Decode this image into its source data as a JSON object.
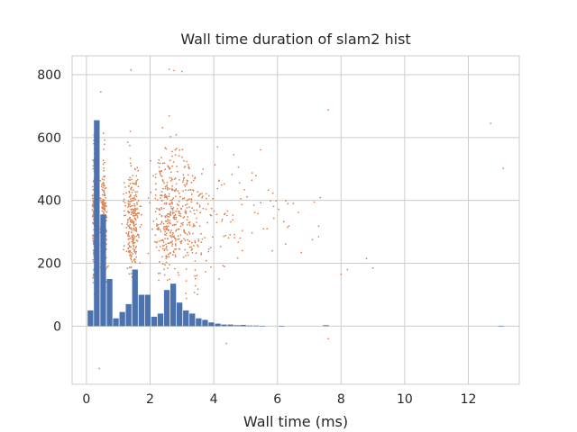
{
  "chart_data": {
    "type": "bar",
    "title": "Wall time duration of slam2 hist",
    "xlabel": "Wall time (ms)",
    "ylabel": "",
    "xlim": [
      -0.45,
      13.6
    ],
    "ylim": [
      -185,
      860
    ],
    "xticks": [
      0,
      2,
      4,
      6,
      8,
      10,
      12
    ],
    "yticks": [
      0,
      200,
      400,
      600,
      800
    ],
    "grid": true,
    "colors": {
      "bars": "#4c72b0",
      "scatter": "#dd8452",
      "grid": "#cccccc",
      "frame": "#cccccc"
    },
    "series": [
      {
        "type": "bar",
        "bins": [
          {
            "x": 0.125,
            "w": 0.2,
            "h": 50
          },
          {
            "x": 0.325,
            "w": 0.2,
            "h": 655
          },
          {
            "x": 0.525,
            "w": 0.2,
            "h": 355
          },
          {
            "x": 0.725,
            "w": 0.2,
            "h": 150
          },
          {
            "x": 0.925,
            "w": 0.2,
            "h": 25
          },
          {
            "x": 1.125,
            "w": 0.2,
            "h": 45
          },
          {
            "x": 1.325,
            "w": 0.2,
            "h": 70
          },
          {
            "x": 1.525,
            "w": 0.2,
            "h": 180
          },
          {
            "x": 1.725,
            "w": 0.2,
            "h": 100
          },
          {
            "x": 1.925,
            "w": 0.2,
            "h": 100
          },
          {
            "x": 2.125,
            "w": 0.2,
            "h": 30
          },
          {
            "x": 2.325,
            "w": 0.2,
            "h": 40
          },
          {
            "x": 2.525,
            "w": 0.2,
            "h": 115
          },
          {
            "x": 2.725,
            "w": 0.2,
            "h": 135
          },
          {
            "x": 2.925,
            "w": 0.2,
            "h": 75
          },
          {
            "x": 3.125,
            "w": 0.2,
            "h": 50
          },
          {
            "x": 3.325,
            "w": 0.2,
            "h": 40
          },
          {
            "x": 3.525,
            "w": 0.2,
            "h": 25
          },
          {
            "x": 3.725,
            "w": 0.2,
            "h": 20
          },
          {
            "x": 3.925,
            "w": 0.2,
            "h": 12
          },
          {
            "x": 4.125,
            "w": 0.2,
            "h": 8
          },
          {
            "x": 4.325,
            "w": 0.2,
            "h": 5
          },
          {
            "x": 4.525,
            "w": 0.2,
            "h": 5
          },
          {
            "x": 4.725,
            "w": 0.2,
            "h": 3
          },
          {
            "x": 4.925,
            "w": 0.2,
            "h": 4
          },
          {
            "x": 5.125,
            "w": 0.2,
            "h": 2
          },
          {
            "x": 5.325,
            "w": 0.2,
            "h": 2
          },
          {
            "x": 5.525,
            "w": 0.2,
            "h": 1
          },
          {
            "x": 6.125,
            "w": 0.2,
            "h": 1
          },
          {
            "x": 7.525,
            "w": 0.2,
            "h": 3
          },
          {
            "x": 13.025,
            "w": 0.2,
            "h": 1
          }
        ]
      },
      {
        "type": "scatter",
        "notable_points": [
          {
            "x": 1.4,
            "y": 815
          },
          {
            "x": 2.6,
            "y": 817
          },
          {
            "x": 2.75,
            "y": 813
          },
          {
            "x": 3.0,
            "y": 810
          },
          {
            "x": 0.45,
            "y": 745
          },
          {
            "x": 7.6,
            "y": 688
          },
          {
            "x": 12.7,
            "y": 645
          },
          {
            "x": 13.1,
            "y": 502
          },
          {
            "x": 7.6,
            "y": -40
          },
          {
            "x": 0.4,
            "y": -135
          },
          {
            "x": 4.4,
            "y": -55
          },
          {
            "x": 8.0,
            "y": 165
          },
          {
            "x": 8.8,
            "y": 215
          },
          {
            "x": 9.0,
            "y": 185
          },
          {
            "x": 8.2,
            "y": 180
          },
          {
            "x": 7.1,
            "y": 275
          },
          {
            "x": 6.5,
            "y": 390
          }
        ]
      }
    ]
  }
}
